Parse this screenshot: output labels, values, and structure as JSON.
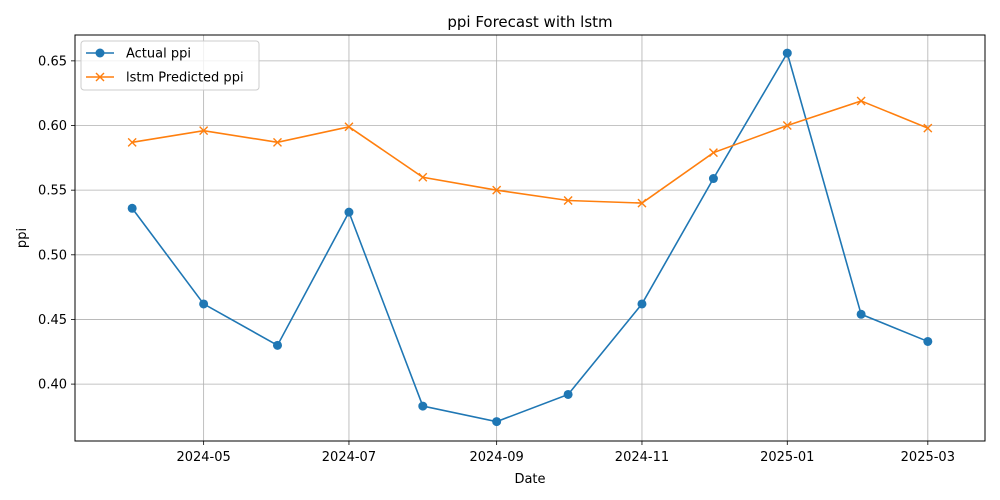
{
  "chart_data": {
    "type": "line",
    "title": "ppi Forecast with lstm",
    "xlabel": "Date",
    "ylabel": "ppi",
    "x": [
      "2024-04-01",
      "2024-05-01",
      "2024-06-01",
      "2024-07-01",
      "2024-08-01",
      "2024-09-01",
      "2024-10-01",
      "2024-11-01",
      "2024-12-01",
      "2025-01-01",
      "2025-02-01",
      "2025-03-01"
    ],
    "series": [
      {
        "name": "Actual ppi",
        "color": "#1f77b4",
        "marker": "circle",
        "values": [
          0.536,
          0.462,
          0.43,
          0.533,
          0.383,
          0.371,
          0.392,
          0.462,
          0.559,
          0.656,
          0.454,
          0.433
        ]
      },
      {
        "name": "lstm Predicted ppi",
        "color": "#ff7f0e",
        "marker": "x",
        "values": [
          0.587,
          0.596,
          0.587,
          0.599,
          0.56,
          0.55,
          0.542,
          0.54,
          0.579,
          0.6,
          0.619,
          0.598
        ]
      }
    ],
    "xticks": [
      "2024-05",
      "2024-07",
      "2024-09",
      "2024-11",
      "2025-01",
      "2025-03"
    ],
    "yticks": [
      "0.40",
      "0.45",
      "0.50",
      "0.55",
      "0.60",
      "0.65"
    ],
    "xlim": [
      "2024-03-08",
      "2025-03-25"
    ],
    "ylim": [
      0.356,
      0.67
    ],
    "grid": true,
    "legend_position": "top-left"
  }
}
